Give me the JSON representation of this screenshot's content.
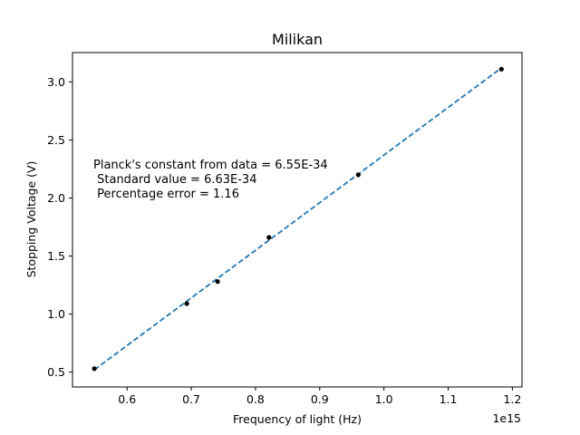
{
  "chart_data": {
    "type": "scatter",
    "title": "Milikan",
    "xlabel": "Frequency of light (Hz)",
    "ylabel": "Stopping Voltage (V)",
    "x_offset_label": "1e15",
    "xlim": [
      0.515,
      1.215
    ],
    "ylim": [
      0.372,
      3.253
    ],
    "x_ticks": [
      0.6,
      0.7,
      0.8,
      0.9,
      1.0,
      1.1,
      1.2
    ],
    "x_tick_labels": [
      "0.6",
      "0.7",
      "0.8",
      "0.9",
      "1.0",
      "1.1",
      "1.2"
    ],
    "y_ticks": [
      0.5,
      1.0,
      1.5,
      2.0,
      2.5,
      3.0
    ],
    "y_tick_labels": [
      "0.5",
      "1.0",
      "1.5",
      "2.0",
      "2.5",
      "3.0"
    ],
    "grid": false,
    "series": [
      {
        "kind": "scatter",
        "color": "#000000",
        "x": [
          0.549,
          0.693,
          0.741,
          0.821,
          0.96,
          1.183
        ],
        "y": [
          0.53,
          1.09,
          1.28,
          1.66,
          2.2,
          3.11
        ]
      },
      {
        "kind": "fit-line",
        "style": "dashed",
        "color": "#1f77b4",
        "x": [
          0.549,
          1.183
        ],
        "y": [
          0.52,
          3.12
        ]
      }
    ],
    "annotation": [
      "Planck's constant from data = 6.55E-34",
      " Standard value = 6.63E-34",
      " Percentage error = 1.16"
    ]
  }
}
